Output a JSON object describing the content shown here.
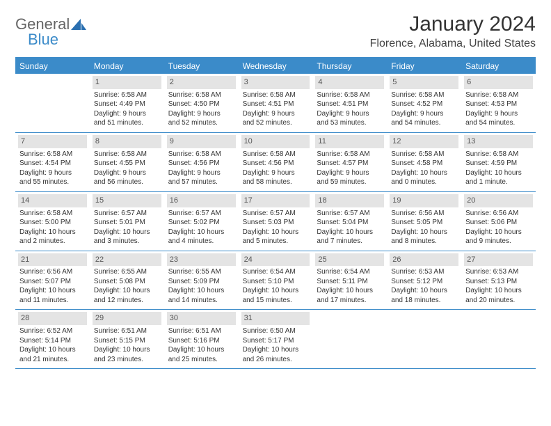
{
  "logo": {
    "part1": "General",
    "part2": "Blue"
  },
  "title": "January 2024",
  "location": "Florence, Alabama, United States",
  "colors": {
    "header_bg": "#3b8bc9",
    "header_text": "#ffffff",
    "daynum_bg": "#e4e4e4",
    "border": "#3b8bc9",
    "text": "#333333"
  },
  "day_names": [
    "Sunday",
    "Monday",
    "Tuesday",
    "Wednesday",
    "Thursday",
    "Friday",
    "Saturday"
  ],
  "weeks": [
    [
      null,
      {
        "n": "1",
        "sr": "Sunrise: 6:58 AM",
        "ss": "Sunset: 4:49 PM",
        "d1": "Daylight: 9 hours",
        "d2": "and 51 minutes."
      },
      {
        "n": "2",
        "sr": "Sunrise: 6:58 AM",
        "ss": "Sunset: 4:50 PM",
        "d1": "Daylight: 9 hours",
        "d2": "and 52 minutes."
      },
      {
        "n": "3",
        "sr": "Sunrise: 6:58 AM",
        "ss": "Sunset: 4:51 PM",
        "d1": "Daylight: 9 hours",
        "d2": "and 52 minutes."
      },
      {
        "n": "4",
        "sr": "Sunrise: 6:58 AM",
        "ss": "Sunset: 4:51 PM",
        "d1": "Daylight: 9 hours",
        "d2": "and 53 minutes."
      },
      {
        "n": "5",
        "sr": "Sunrise: 6:58 AM",
        "ss": "Sunset: 4:52 PM",
        "d1": "Daylight: 9 hours",
        "d2": "and 54 minutes."
      },
      {
        "n": "6",
        "sr": "Sunrise: 6:58 AM",
        "ss": "Sunset: 4:53 PM",
        "d1": "Daylight: 9 hours",
        "d2": "and 54 minutes."
      }
    ],
    [
      {
        "n": "7",
        "sr": "Sunrise: 6:58 AM",
        "ss": "Sunset: 4:54 PM",
        "d1": "Daylight: 9 hours",
        "d2": "and 55 minutes."
      },
      {
        "n": "8",
        "sr": "Sunrise: 6:58 AM",
        "ss": "Sunset: 4:55 PM",
        "d1": "Daylight: 9 hours",
        "d2": "and 56 minutes."
      },
      {
        "n": "9",
        "sr": "Sunrise: 6:58 AM",
        "ss": "Sunset: 4:56 PM",
        "d1": "Daylight: 9 hours",
        "d2": "and 57 minutes."
      },
      {
        "n": "10",
        "sr": "Sunrise: 6:58 AM",
        "ss": "Sunset: 4:56 PM",
        "d1": "Daylight: 9 hours",
        "d2": "and 58 minutes."
      },
      {
        "n": "11",
        "sr": "Sunrise: 6:58 AM",
        "ss": "Sunset: 4:57 PM",
        "d1": "Daylight: 9 hours",
        "d2": "and 59 minutes."
      },
      {
        "n": "12",
        "sr": "Sunrise: 6:58 AM",
        "ss": "Sunset: 4:58 PM",
        "d1": "Daylight: 10 hours",
        "d2": "and 0 minutes."
      },
      {
        "n": "13",
        "sr": "Sunrise: 6:58 AM",
        "ss": "Sunset: 4:59 PM",
        "d1": "Daylight: 10 hours",
        "d2": "and 1 minute."
      }
    ],
    [
      {
        "n": "14",
        "sr": "Sunrise: 6:58 AM",
        "ss": "Sunset: 5:00 PM",
        "d1": "Daylight: 10 hours",
        "d2": "and 2 minutes."
      },
      {
        "n": "15",
        "sr": "Sunrise: 6:57 AM",
        "ss": "Sunset: 5:01 PM",
        "d1": "Daylight: 10 hours",
        "d2": "and 3 minutes."
      },
      {
        "n": "16",
        "sr": "Sunrise: 6:57 AM",
        "ss": "Sunset: 5:02 PM",
        "d1": "Daylight: 10 hours",
        "d2": "and 4 minutes."
      },
      {
        "n": "17",
        "sr": "Sunrise: 6:57 AM",
        "ss": "Sunset: 5:03 PM",
        "d1": "Daylight: 10 hours",
        "d2": "and 5 minutes."
      },
      {
        "n": "18",
        "sr": "Sunrise: 6:57 AM",
        "ss": "Sunset: 5:04 PM",
        "d1": "Daylight: 10 hours",
        "d2": "and 7 minutes."
      },
      {
        "n": "19",
        "sr": "Sunrise: 6:56 AM",
        "ss": "Sunset: 5:05 PM",
        "d1": "Daylight: 10 hours",
        "d2": "and 8 minutes."
      },
      {
        "n": "20",
        "sr": "Sunrise: 6:56 AM",
        "ss": "Sunset: 5:06 PM",
        "d1": "Daylight: 10 hours",
        "d2": "and 9 minutes."
      }
    ],
    [
      {
        "n": "21",
        "sr": "Sunrise: 6:56 AM",
        "ss": "Sunset: 5:07 PM",
        "d1": "Daylight: 10 hours",
        "d2": "and 11 minutes."
      },
      {
        "n": "22",
        "sr": "Sunrise: 6:55 AM",
        "ss": "Sunset: 5:08 PM",
        "d1": "Daylight: 10 hours",
        "d2": "and 12 minutes."
      },
      {
        "n": "23",
        "sr": "Sunrise: 6:55 AM",
        "ss": "Sunset: 5:09 PM",
        "d1": "Daylight: 10 hours",
        "d2": "and 14 minutes."
      },
      {
        "n": "24",
        "sr": "Sunrise: 6:54 AM",
        "ss": "Sunset: 5:10 PM",
        "d1": "Daylight: 10 hours",
        "d2": "and 15 minutes."
      },
      {
        "n": "25",
        "sr": "Sunrise: 6:54 AM",
        "ss": "Sunset: 5:11 PM",
        "d1": "Daylight: 10 hours",
        "d2": "and 17 minutes."
      },
      {
        "n": "26",
        "sr": "Sunrise: 6:53 AM",
        "ss": "Sunset: 5:12 PM",
        "d1": "Daylight: 10 hours",
        "d2": "and 18 minutes."
      },
      {
        "n": "27",
        "sr": "Sunrise: 6:53 AM",
        "ss": "Sunset: 5:13 PM",
        "d1": "Daylight: 10 hours",
        "d2": "and 20 minutes."
      }
    ],
    [
      {
        "n": "28",
        "sr": "Sunrise: 6:52 AM",
        "ss": "Sunset: 5:14 PM",
        "d1": "Daylight: 10 hours",
        "d2": "and 21 minutes."
      },
      {
        "n": "29",
        "sr": "Sunrise: 6:51 AM",
        "ss": "Sunset: 5:15 PM",
        "d1": "Daylight: 10 hours",
        "d2": "and 23 minutes."
      },
      {
        "n": "30",
        "sr": "Sunrise: 6:51 AM",
        "ss": "Sunset: 5:16 PM",
        "d1": "Daylight: 10 hours",
        "d2": "and 25 minutes."
      },
      {
        "n": "31",
        "sr": "Sunrise: 6:50 AM",
        "ss": "Sunset: 5:17 PM",
        "d1": "Daylight: 10 hours",
        "d2": "and 26 minutes."
      },
      null,
      null,
      null
    ]
  ]
}
